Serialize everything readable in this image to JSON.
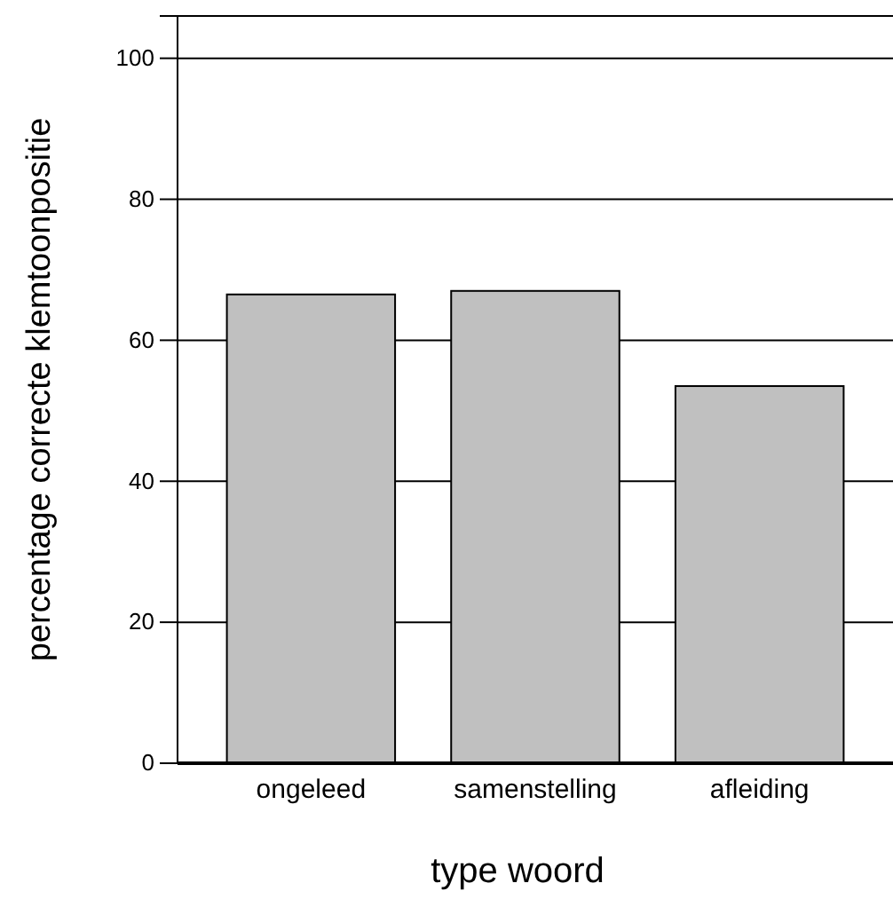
{
  "chart_data": {
    "type": "bar",
    "xlabel": "type woord",
    "ylabel": "percentage correcte klemtoonpositie",
    "categories": [
      "ongeleed",
      "samenstelling",
      "afleiding"
    ],
    "values": [
      66.5,
      67,
      53.5
    ],
    "color": "#c0c0c0",
    "ylim": [
      0,
      106
    ],
    "yticks": [
      0,
      20,
      40,
      60,
      80,
      100
    ],
    "grid": "y"
  }
}
